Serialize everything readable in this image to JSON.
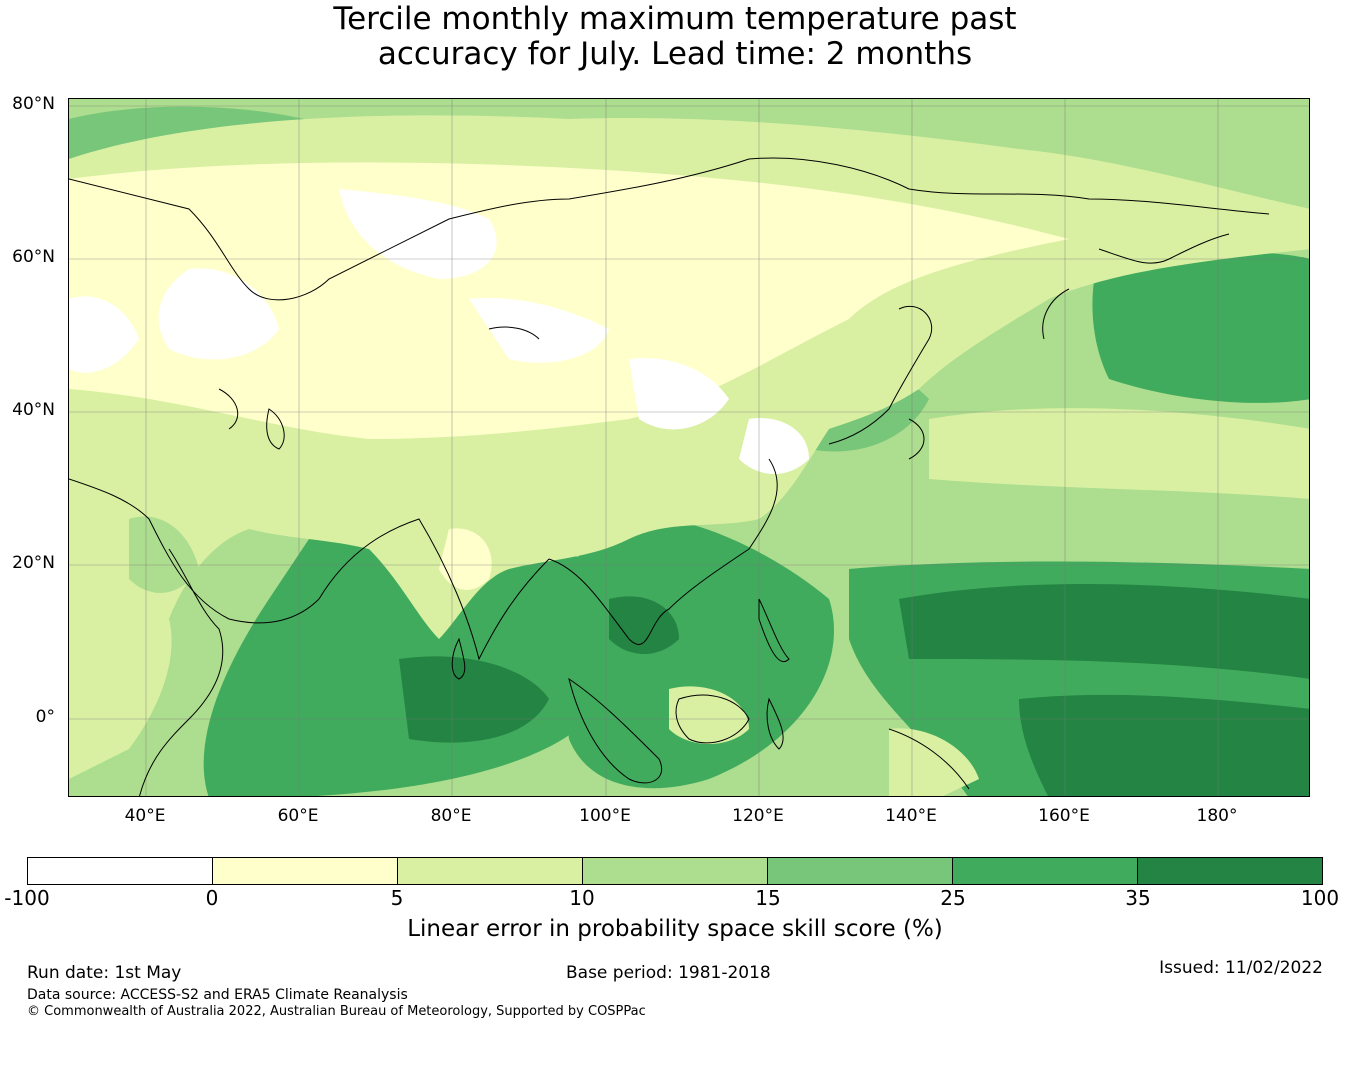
{
  "title": {
    "line1": "Tercile monthly maximum temperature past",
    "line2": "accuracy for July. Lead time: 2 months"
  },
  "map": {
    "lat_labels": [
      "80°N",
      "60°N",
      "40°N",
      "20°N",
      "0°"
    ],
    "lon_labels": [
      "40°E",
      "60°E",
      "80°E",
      "100°E",
      "120°E",
      "140°E",
      "160°E",
      "180°"
    ],
    "gridlines": true,
    "ocean_color": "#d9f0a3"
  },
  "colorbar": {
    "ticks": [
      "-100",
      "0",
      "5",
      "10",
      "15",
      "25",
      "35",
      "100"
    ],
    "colors": [
      "#ffffff",
      "#ffffcc",
      "#d9f0a3",
      "#addd8e",
      "#78c679",
      "#41ab5d",
      "#238443"
    ],
    "label": "Linear error in probability space skill score (%)"
  },
  "footer": {
    "run_date": "Run date: 1st May",
    "base_period": "Base period: 1981-2018",
    "issued": "Issued: 11/02/2022",
    "data_source": "Data source: ACCESS-S2 and ERA5 Climate Reanalysis",
    "copyright": "© Commonwealth of Australia 2022, Australian Bureau of Meteorology, Supported by COSPPac"
  }
}
